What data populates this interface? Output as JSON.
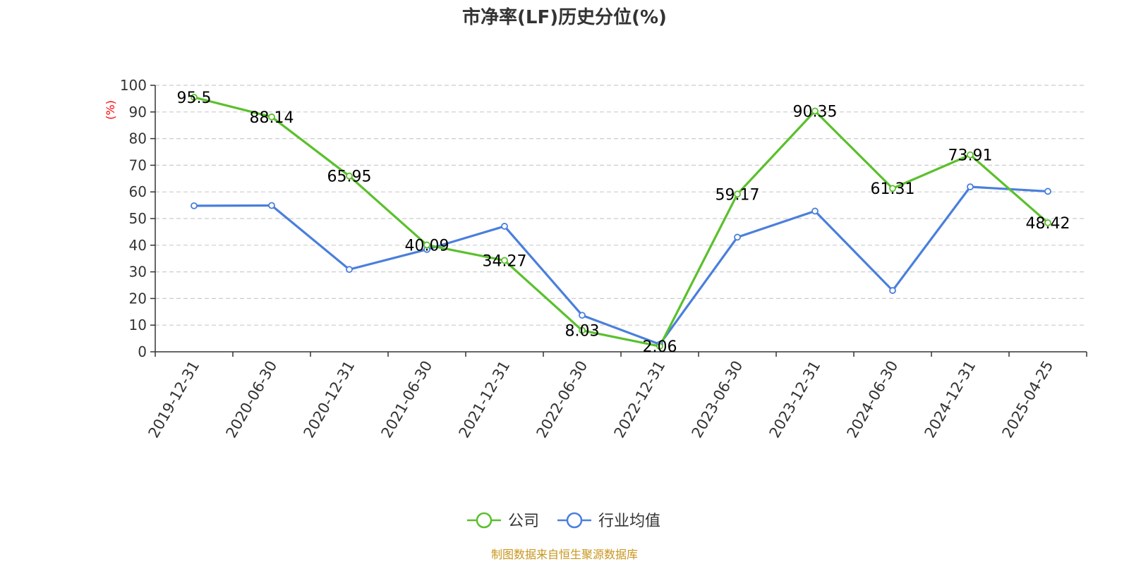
{
  "chart_data": {
    "type": "line",
    "title": "市净率(LF)历史分位(%)",
    "ylabel": "(%)",
    "ylim": [
      0,
      100
    ],
    "yticks": [
      0,
      10,
      20,
      30,
      40,
      50,
      60,
      70,
      80,
      90,
      100
    ],
    "grid": "horizontal-dashed",
    "categories": [
      "2019-12-31",
      "2020-06-30",
      "2020-12-31",
      "2021-06-30",
      "2021-12-31",
      "2022-06-30",
      "2022-12-31",
      "2023-06-30",
      "2023-12-31",
      "2024-06-30",
      "2024-12-31",
      "2025-04-25"
    ],
    "series": [
      {
        "name": "公司",
        "color": "#5ac02c",
        "values": [
          95.5,
          88.14,
          65.95,
          40.09,
          34.27,
          8.03,
          2.06,
          59.17,
          90.35,
          61.31,
          73.91,
          48.42
        ],
        "labels": [
          "95.5",
          "88.14",
          "65.95",
          "40.09",
          "34.27",
          "8.03",
          "2.06",
          "59.17",
          "90.35",
          "61.31",
          "73.91",
          "48.42"
        ]
      },
      {
        "name": "行业均值",
        "color": "#4a7fdc",
        "values": [
          54.8,
          54.9,
          30.9,
          38.4,
          47.1,
          13.7,
          2.8,
          43.0,
          52.8,
          23.0,
          61.9,
          60.2
        ]
      }
    ],
    "legend_position": "bottom-center",
    "source": "制图数据来自恒生聚源数据库"
  }
}
